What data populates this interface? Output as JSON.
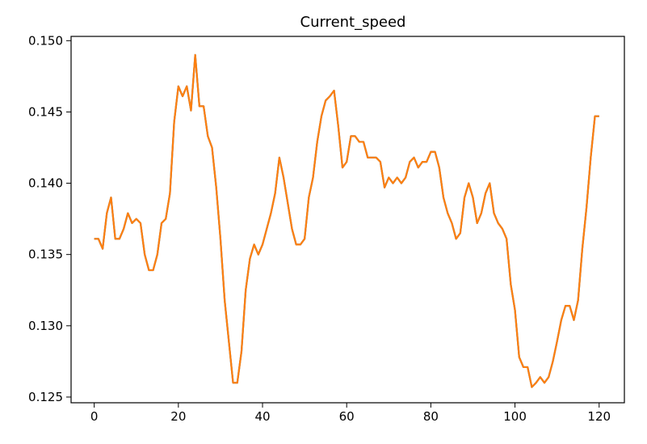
{
  "chart_data": {
    "type": "line",
    "title": "Current_speed",
    "xlabel": "",
    "ylabel": "",
    "xlim": [
      -5.5,
      126
    ],
    "ylim": [
      0.1246,
      0.1503
    ],
    "x_ticks": [
      0,
      20,
      40,
      60,
      80,
      100,
      120
    ],
    "x_tick_labels": [
      "0",
      "20",
      "40",
      "60",
      "80",
      "100",
      "120"
    ],
    "y_ticks": [
      0.125,
      0.13,
      0.135,
      0.14,
      0.145,
      0.15
    ],
    "y_tick_labels": [
      "0.125",
      "0.130",
      "0.135",
      "0.140",
      "0.145",
      "0.150"
    ],
    "grid": false,
    "series": [
      {
        "color": "#1f77b4",
        "values": [
          0.1361,
          0.1361,
          0.1354,
          0.1379,
          0.139,
          0.1361,
          0.1361,
          0.1368,
          0.1379,
          0.1372,
          0.1375,
          0.1372,
          0.135,
          0.1339,
          0.1339,
          0.135,
          0.1372,
          0.1375,
          0.1393,
          0.1443,
          0.1468,
          0.1461,
          0.1468,
          0.1451,
          0.149,
          0.1454,
          0.1454,
          0.1433,
          0.1425,
          0.1397,
          0.1361,
          0.1318,
          0.1289,
          0.126,
          0.126,
          0.1282,
          0.1325,
          0.1347,
          0.1357,
          0.135,
          0.1357,
          0.1368,
          0.1379,
          0.1393,
          0.1418,
          0.1404,
          0.1386,
          0.1368,
          0.1357,
          0.1357,
          0.1361,
          0.139,
          0.1404,
          0.1429,
          0.1447,
          0.1458,
          0.1461,
          0.1465,
          0.144,
          0.1411,
          0.1415,
          0.1433,
          0.1433,
          0.1429,
          0.1429,
          0.1418,
          0.1418,
          0.1418,
          0.1415,
          0.1397,
          0.1404,
          0.14,
          0.1404,
          0.14,
          0.1404,
          0.1415,
          0.1418,
          0.1411,
          0.1415,
          0.1415,
          0.1422,
          0.1422,
          0.1411,
          0.139,
          0.1379,
          0.1372,
          0.1361,
          0.1365,
          0.139,
          0.14,
          0.139,
          0.1372,
          0.1379,
          0.1393,
          0.14,
          0.1379,
          0.1372,
          0.1368,
          0.1361,
          0.1329,
          0.1311,
          0.1278,
          0.1271,
          0.1271,
          0.1257,
          0.126,
          0.1264,
          0.126,
          0.1264,
          0.1275,
          0.1289,
          0.1304,
          0.1314,
          0.1314,
          0.1304,
          0.1318,
          0.1354,
          0.1383,
          0.1418,
          0.1447,
          0.1447
        ]
      },
      {
        "color": "#ff7f0e",
        "values": [
          0.1361,
          0.1361,
          0.1354,
          0.1379,
          0.139,
          0.1361,
          0.1361,
          0.1368,
          0.1379,
          0.1372,
          0.1375,
          0.1372,
          0.135,
          0.1339,
          0.1339,
          0.135,
          0.1372,
          0.1375,
          0.1393,
          0.1443,
          0.1468,
          0.1461,
          0.1468,
          0.1451,
          0.149,
          0.1454,
          0.1454,
          0.1433,
          0.1425,
          0.1397,
          0.1361,
          0.1318,
          0.1289,
          0.126,
          0.126,
          0.1282,
          0.1325,
          0.1347,
          0.1357,
          0.135,
          0.1357,
          0.1368,
          0.1379,
          0.1393,
          0.1418,
          0.1404,
          0.1386,
          0.1368,
          0.1357,
          0.1357,
          0.1361,
          0.139,
          0.1404,
          0.1429,
          0.1447,
          0.1458,
          0.1461,
          0.1465,
          0.144,
          0.1411,
          0.1415,
          0.1433,
          0.1433,
          0.1429,
          0.1429,
          0.1418,
          0.1418,
          0.1418,
          0.1415,
          0.1397,
          0.1404,
          0.14,
          0.1404,
          0.14,
          0.1404,
          0.1415,
          0.1418,
          0.1411,
          0.1415,
          0.1415,
          0.1422,
          0.1422,
          0.1411,
          0.139,
          0.1379,
          0.1372,
          0.1361,
          0.1365,
          0.139,
          0.14,
          0.139,
          0.1372,
          0.1379,
          0.1393,
          0.14,
          0.1379,
          0.1372,
          0.1368,
          0.1361,
          0.1329,
          0.1311,
          0.1278,
          0.1271,
          0.1271,
          0.1257,
          0.126,
          0.1264,
          0.126,
          0.1264,
          0.1275,
          0.1289,
          0.1304,
          0.1314,
          0.1314,
          0.1304,
          0.1318,
          0.1354,
          0.1383,
          0.1418,
          0.1447,
          0.1447
        ]
      }
    ]
  }
}
